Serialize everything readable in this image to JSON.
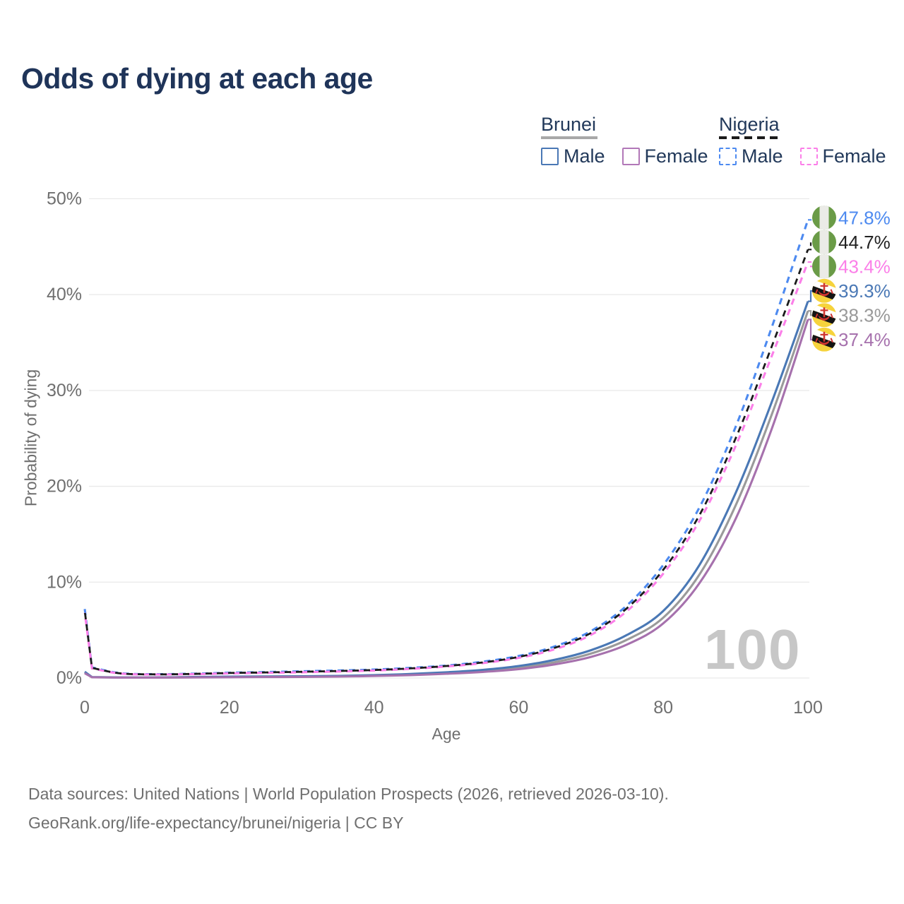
{
  "title": "Odds of dying at each age",
  "watermark": "100",
  "legend": {
    "groups": [
      {
        "label": "Brunei",
        "line_style": "solid",
        "underline_color": "#a8a8a8",
        "items": [
          {
            "label": "Male",
            "color": "#4a78b5",
            "dashed": false
          },
          {
            "label": "Female",
            "color": "#b278b8",
            "dashed": false
          }
        ]
      },
      {
        "label": "Nigeria",
        "line_style": "dashed",
        "underline_color": "#1b1b1b",
        "items": [
          {
            "label": "Male",
            "color": "#4d8af0",
            "dashed": true
          },
          {
            "label": "Female",
            "color": "#fb7fe8",
            "dashed": true
          }
        ]
      }
    ]
  },
  "axes": {
    "x": {
      "label": "Age",
      "tick_values": [
        0,
        20,
        40,
        60,
        80,
        100
      ],
      "min": 0,
      "max": 100
    },
    "y": {
      "label": "Probability of dying",
      "tick_values": [
        0,
        10,
        20,
        30,
        40,
        50
      ],
      "tick_labels": [
        "0%",
        "10%",
        "20%",
        "30%",
        "40%",
        "50%"
      ],
      "min": 0,
      "max": 50
    }
  },
  "chart_data": {
    "type": "line",
    "title": "Odds of dying at each age",
    "xlabel": "Age",
    "ylabel": "Probability of dying",
    "xlim": [
      0,
      100
    ],
    "ylim": [
      0,
      50
    ],
    "grid": "horizontal-only",
    "legend_position": "top-right",
    "x": [
      0,
      1,
      5,
      10,
      15,
      20,
      25,
      30,
      35,
      40,
      45,
      50,
      55,
      60,
      65,
      70,
      75,
      80,
      85,
      90,
      95,
      100
    ],
    "series": [
      {
        "name": "Nigeria Male",
        "country": "Nigeria",
        "sex": "Male",
        "color": "#4d8af0",
        "dashed": true,
        "end_label": "47.8%",
        "label_color": "#4d8af0",
        "flag": "nigeria-flag-icon",
        "values": [
          7.2,
          1.1,
          0.5,
          0.4,
          0.45,
          0.55,
          0.62,
          0.7,
          0.78,
          0.88,
          1.05,
          1.3,
          1.7,
          2.3,
          3.3,
          4.9,
          7.6,
          11.8,
          17.8,
          26.2,
          36.6,
          47.8
        ]
      },
      {
        "name": "Nigeria Both sexes",
        "country": "Nigeria",
        "sex": "Both",
        "color": "#1b1b1b",
        "dashed": true,
        "end_label": "44.7%",
        "label_color": "#222222",
        "flag": "nigeria-flag-icon",
        "values": [
          7.0,
          1.05,
          0.48,
          0.38,
          0.43,
          0.52,
          0.58,
          0.65,
          0.73,
          0.83,
          1.0,
          1.25,
          1.62,
          2.2,
          3.15,
          4.7,
          7.3,
          11.3,
          17.0,
          25.0,
          34.6,
          44.7
        ]
      },
      {
        "name": "Nigeria Female",
        "country": "Nigeria",
        "sex": "Female",
        "color": "#fb7fe8",
        "dashed": true,
        "end_label": "43.4%",
        "label_color": "#fb7fe8",
        "flag": "nigeria-flag-icon",
        "values": [
          6.8,
          1.0,
          0.46,
          0.36,
          0.4,
          0.48,
          0.54,
          0.6,
          0.68,
          0.78,
          0.95,
          1.2,
          1.55,
          2.1,
          3.0,
          4.5,
          7.0,
          10.9,
          16.4,
          24.2,
          33.6,
          43.4
        ]
      },
      {
        "name": "Brunei Male",
        "country": "Brunei",
        "sex": "Male",
        "color": "#4a78b5",
        "dashed": false,
        "end_label": "39.3%",
        "label_color": "#4a78b5",
        "flag": "brunei-flag-icon",
        "values": [
          0.65,
          0.1,
          0.06,
          0.06,
          0.1,
          0.14,
          0.16,
          0.18,
          0.22,
          0.3,
          0.42,
          0.6,
          0.85,
          1.25,
          1.9,
          2.9,
          4.5,
          7.0,
          11.8,
          19.3,
          28.8,
          39.3
        ]
      },
      {
        "name": "Brunei Both sexes",
        "country": "Brunei",
        "sex": "Both",
        "color": "#9a9a9a",
        "dashed": false,
        "end_label": "38.3%",
        "label_color": "#999999",
        "flag": "brunei-flag-icon",
        "values": [
          0.58,
          0.09,
          0.05,
          0.05,
          0.08,
          0.11,
          0.13,
          0.15,
          0.19,
          0.26,
          0.36,
          0.52,
          0.74,
          1.08,
          1.65,
          2.55,
          4.0,
          6.3,
          10.8,
          18.0,
          27.5,
          38.3
        ]
      },
      {
        "name": "Brunei Female",
        "country": "Brunei",
        "sex": "Female",
        "color": "#a671ad",
        "dashed": false,
        "end_label": "37.4%",
        "label_color": "#a671ad",
        "flag": "brunei-flag-icon",
        "values": [
          0.5,
          0.08,
          0.045,
          0.045,
          0.06,
          0.08,
          0.1,
          0.12,
          0.15,
          0.21,
          0.3,
          0.44,
          0.63,
          0.92,
          1.42,
          2.2,
          3.5,
          5.7,
          9.9,
          16.6,
          26.0,
          37.4
        ]
      }
    ]
  },
  "colors": {
    "title": "#1f3459",
    "axis_text": "#6f6f6f",
    "gridline": "#e9e9e9",
    "watermark": "#c7c7c7",
    "nigeria_flag_green": "#6a9b47",
    "nigeria_flag_white": "#ebebe7",
    "brunei_flag_yellow": "#f6d33c",
    "brunei_flag_red": "#cf3630"
  },
  "footer": {
    "line1": "Data sources: United Nations | World Population Prospects (2026, retrieved 2026-03-10).",
    "line2": "GeoRank.org/life-expectancy/brunei/nigeria | CC BY"
  }
}
